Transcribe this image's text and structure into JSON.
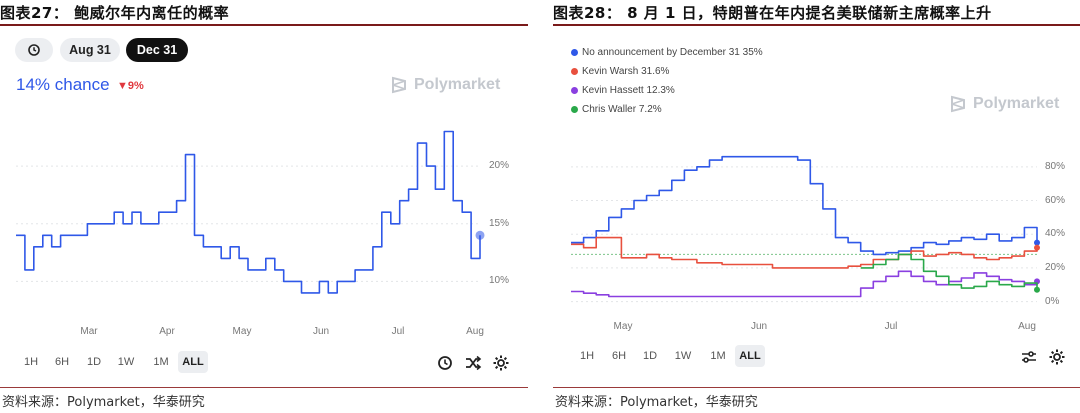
{
  "left": {
    "title": "图表27： 鲍威尔年内离任的概率",
    "source": "资料来源：Polymarket，华泰研究",
    "toolbar": {
      "history_icon": "history-icon",
      "aug31_label": "Aug 31",
      "dec31_label": "Dec 31"
    },
    "headline": {
      "chance_label": "14% chance",
      "delta_label": "▼9%"
    },
    "watermark": "Polymarket",
    "ranges": [
      "1H",
      "6H",
      "1D",
      "1W",
      "1M",
      "ALL"
    ],
    "active_range": "ALL",
    "colors": {
      "line": "#2f58e8",
      "down": "#e0383e"
    }
  },
  "right": {
    "title": "图表28： 8 月 1 日，特朗普在年内提名美联储新主席概率上升",
    "source": "资料来源：Polymarket，华泰研究",
    "watermark": "Polymarket",
    "ranges": [
      "1H",
      "6H",
      "1D",
      "1W",
      "1M",
      "ALL"
    ],
    "active_range": "ALL",
    "legend": [
      {
        "label": "No announcement by December 31 35%",
        "color": "#2f58e8"
      },
      {
        "label": "Kevin Warsh 31.6%",
        "color": "#e8503e"
      },
      {
        "label": "Kevin Hassett 12.3%",
        "color": "#8a3fe0"
      },
      {
        "label": "Chris Waller 7.2%",
        "color": "#2aa84a"
      }
    ]
  },
  "chart_data": [
    {
      "type": "line",
      "title": "",
      "xlabel": "",
      "ylabel": "",
      "x_ticks": [
        "Mar",
        "Apr",
        "May",
        "Jun",
        "Jul",
        "Aug"
      ],
      "y_ticks": [
        "10%",
        "15%",
        "20%"
      ],
      "ylim": [
        7,
        24
      ],
      "grid": "horizontal dotted",
      "series": [
        {
          "values": [
            14,
            11,
            13,
            14,
            13,
            14,
            14,
            14,
            15,
            15,
            15,
            16,
            15,
            16,
            15,
            15,
            16,
            16,
            17,
            21,
            14,
            13,
            13,
            12,
            13,
            12,
            11,
            11,
            12,
            11,
            10,
            10,
            9,
            9,
            10,
            9,
            10,
            10,
            11,
            11,
            13,
            16,
            15,
            17,
            18,
            22,
            20,
            18,
            23,
            17,
            16,
            12,
            14
          ]
        }
      ]
    },
    {
      "type": "line",
      "title": "",
      "xlabel": "",
      "ylabel": "",
      "x_ticks": [
        "May",
        "Jun",
        "Jul",
        "Aug"
      ],
      "y_ticks": [
        "0%",
        "20%",
        "40%",
        "60%",
        "80%"
      ],
      "ylim": [
        -5,
        90
      ],
      "grid": "horizontal dotted",
      "legend_position": "top-left",
      "series": [
        {
          "name": "No announcement by December 31 35%",
          "values": [
            35,
            38,
            42,
            50,
            55,
            60,
            63,
            66,
            72,
            78,
            80,
            84,
            86,
            86,
            86,
            86,
            86,
            86,
            84,
            70,
            55,
            38,
            35,
            30,
            28,
            29,
            30,
            32,
            35,
            34,
            36,
            38,
            37,
            40,
            36,
            38,
            44,
            35
          ]
        },
        {
          "name": "Kevin Warsh 31.6%",
          "values": [
            34,
            32,
            38,
            38,
            26,
            26,
            28,
            26,
            25,
            25,
            23,
            23,
            22,
            22,
            22,
            22,
            20,
            20,
            20,
            20,
            20,
            20,
            21,
            22,
            25,
            25,
            28,
            30,
            27,
            28,
            29,
            28,
            26,
            25,
            26,
            27,
            30,
            32
          ]
        },
        {
          "name": "Kevin Hassett 12.3%",
          "values": [
            6,
            5,
            4,
            3,
            3,
            3,
            3,
            3,
            3,
            3,
            3,
            3,
            3,
            3,
            3,
            3,
            3,
            3,
            3,
            3,
            3,
            3,
            3,
            8,
            12,
            15,
            18,
            15,
            12,
            10,
            12,
            14,
            17,
            15,
            13,
            12,
            10,
            12
          ]
        },
        {
          "name": "Chris Waller 7.2%",
          "values": [
            null,
            null,
            null,
            null,
            null,
            null,
            null,
            null,
            null,
            null,
            null,
            null,
            null,
            null,
            null,
            null,
            null,
            null,
            null,
            null,
            null,
            null,
            null,
            20,
            22,
            25,
            28,
            25,
            18,
            15,
            10,
            8,
            9,
            12,
            10,
            9,
            11,
            7
          ]
        }
      ]
    }
  ]
}
